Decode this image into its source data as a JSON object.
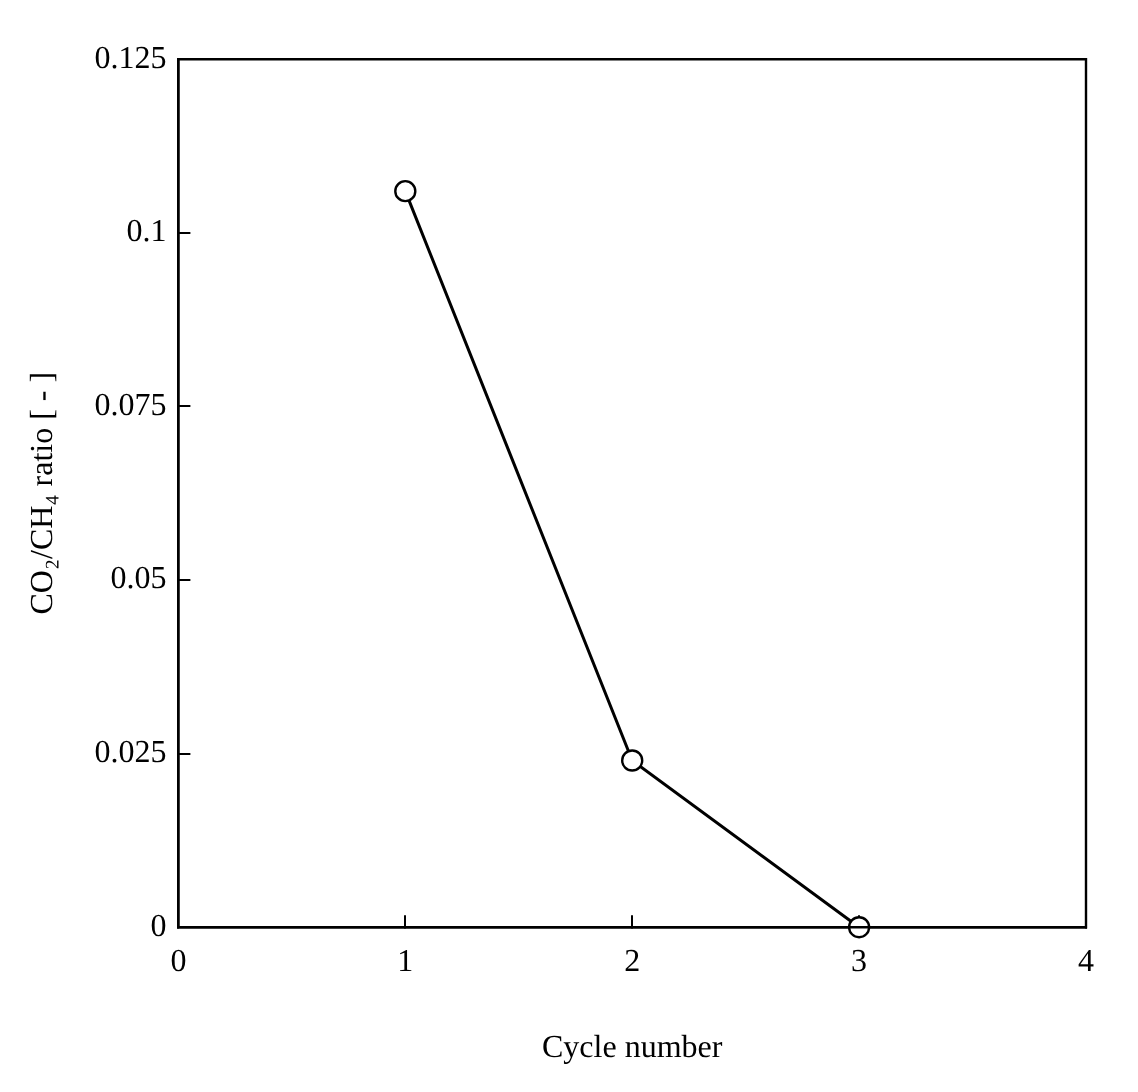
{
  "chart_data": {
    "type": "line",
    "xlabel": "Cycle number",
    "ylabel": "CO₂/CH₄ ratio [ - ]",
    "x": [
      1,
      2,
      3
    ],
    "series": [
      {
        "color": "#000000",
        "values": [
          0.106,
          0.024,
          0
        ]
      }
    ],
    "xlim": [
      0,
      4
    ],
    "xticks": [
      0,
      1,
      2,
      3,
      4
    ],
    "ylim": [
      0,
      0.125
    ],
    "yticks": [
      0,
      0.025,
      0.05,
      0.075,
      0.1,
      0.125
    ],
    "marker": "circle",
    "line_style": "solid",
    "grid": false,
    "legend": false
  }
}
